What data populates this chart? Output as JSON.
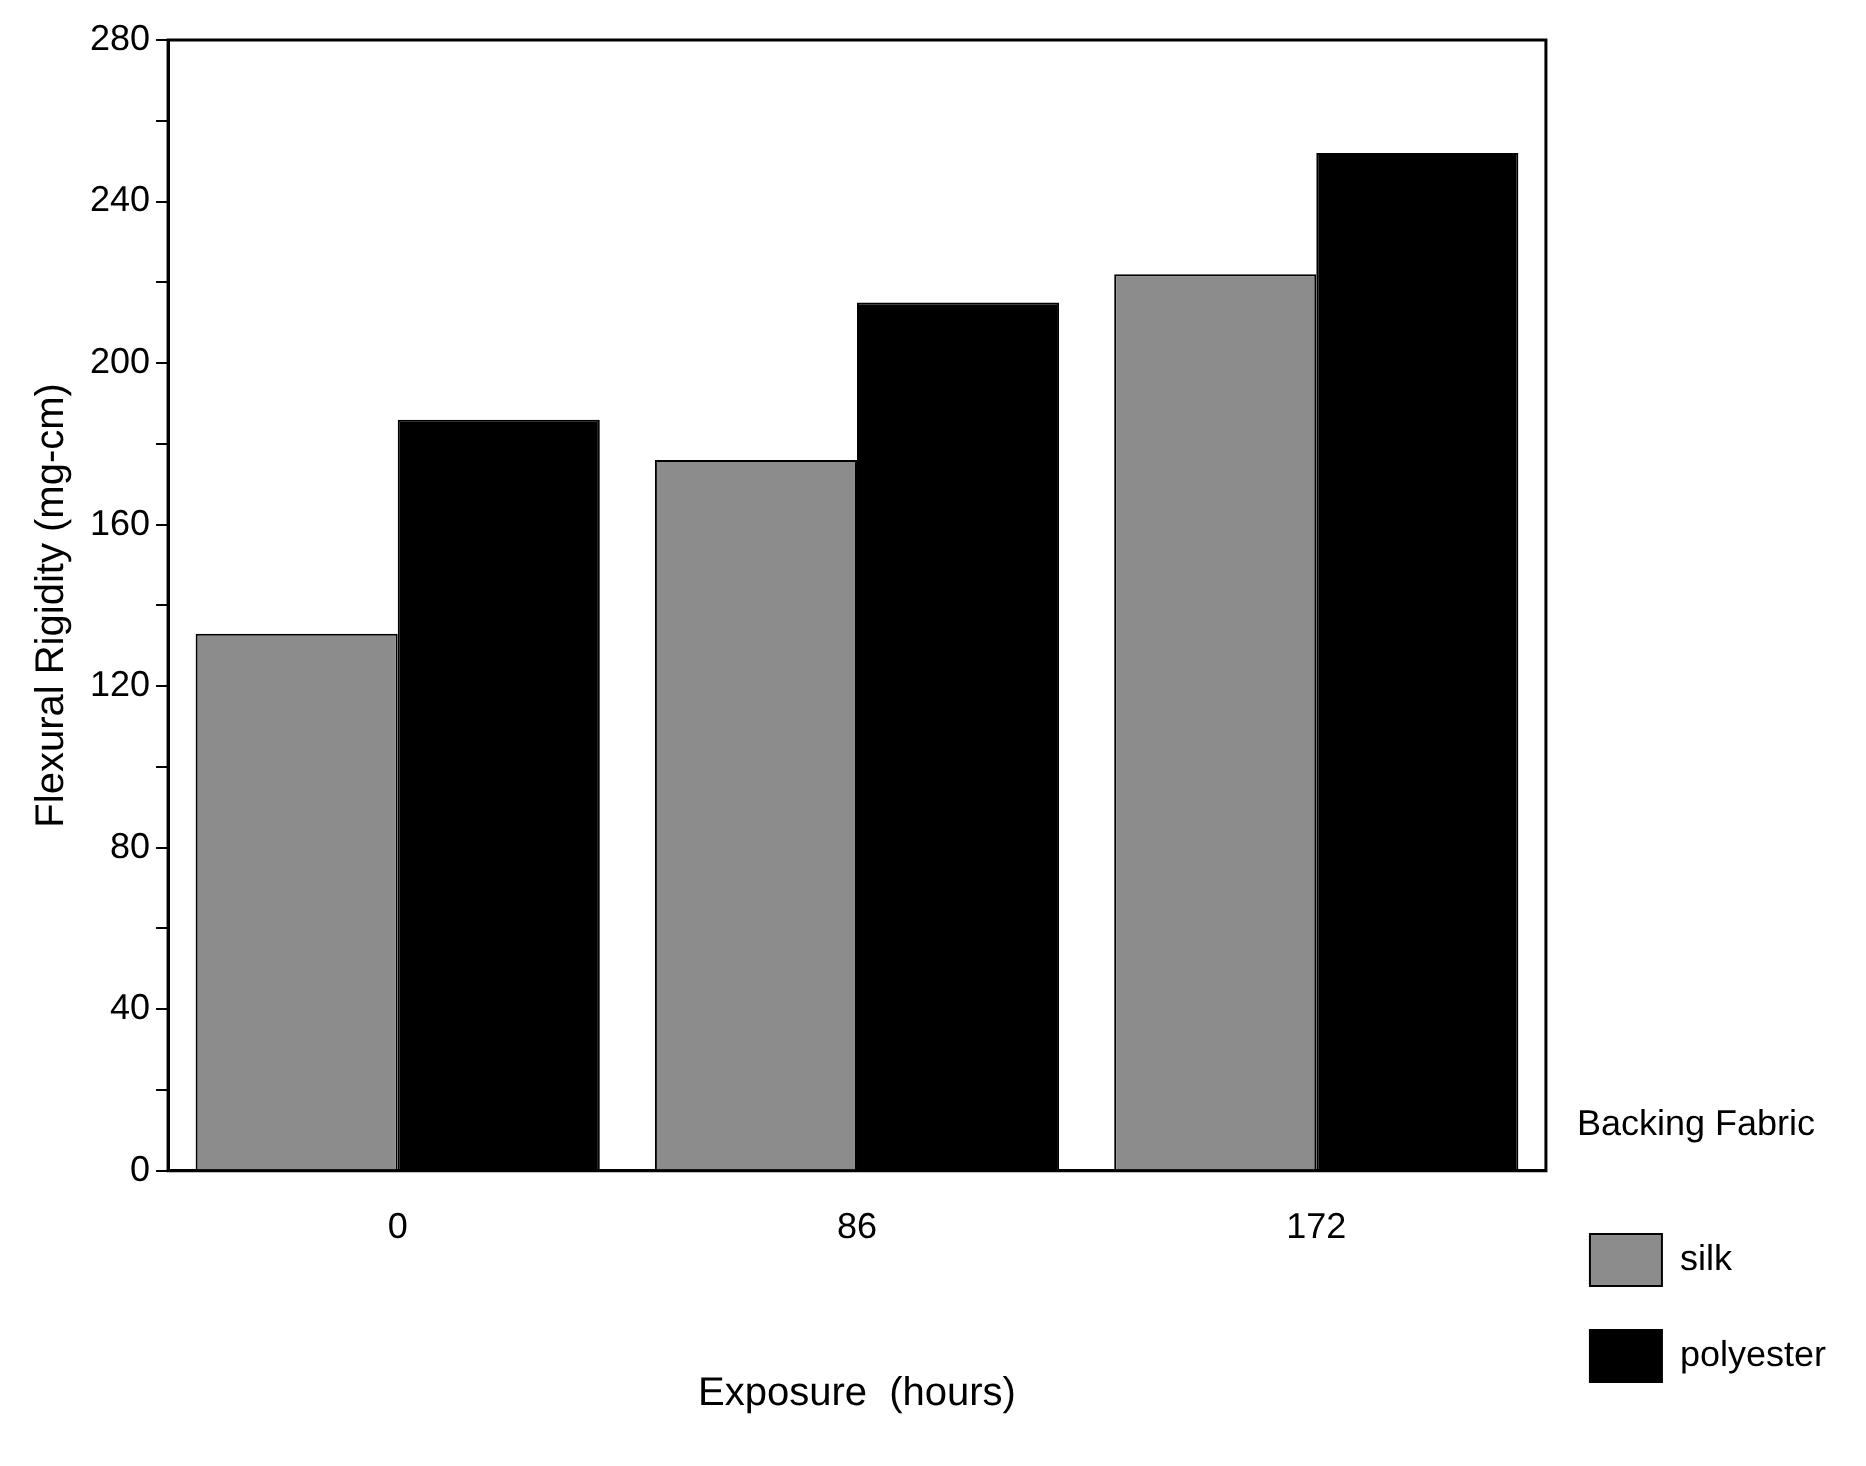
{
  "chart_data": {
    "type": "bar",
    "xlabel": "Exposure  (hours)",
    "ylabel": "Flexural Rigidity (mg-cm)",
    "legend_title": "Backing Fabric",
    "categories": [
      "0",
      "86",
      "172"
    ],
    "series": [
      {
        "name": "silk",
        "color": "#8c8c8c",
        "values": [
          133,
          176,
          222
        ]
      },
      {
        "name": "polyester",
        "color": "#000000",
        "values": [
          186,
          215,
          252
        ]
      }
    ],
    "ylim": [
      0,
      280
    ],
    "yticks": [
      0,
      {
        "value": 20,
        "label": null
      },
      40,
      {
        "value": 60,
        "label": null
      },
      80,
      {
        "value": 100,
        "label": null
      },
      120,
      {
        "value": 140,
        "label": null
      },
      160,
      {
        "value": 180,
        "label": null
      },
      200,
      {
        "value": 220,
        "label": null
      },
      240,
      {
        "value": 260,
        "label": null
      },
      280
    ],
    "grid": false,
    "legend": "right"
  }
}
